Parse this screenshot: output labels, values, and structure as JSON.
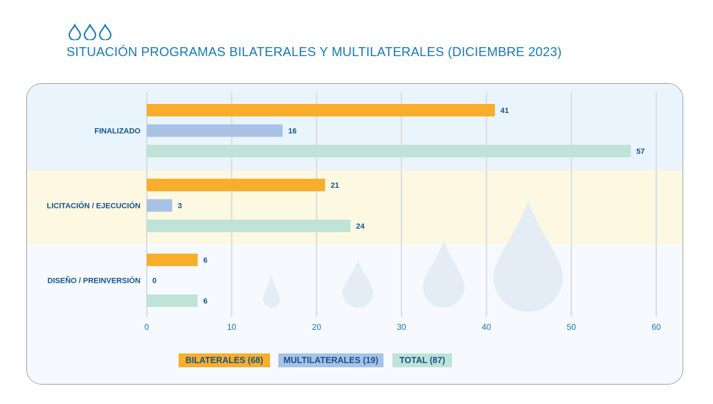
{
  "header": {
    "title": "SITUACIÓN PROGRAMAS BILATERALES Y MULTILATERALES (DICIEMBRE 2023)",
    "icon": "water-drops-icon"
  },
  "colors": {
    "bilaterales": "#f8ae2a",
    "multilaterales": "#a8c2e6",
    "total": "#bfe3d6",
    "text": "#14558f",
    "title": "#1479b8"
  },
  "chart_data": {
    "type": "bar",
    "orientation": "horizontal",
    "title": "SITUACIÓN PROGRAMAS BILATERALES Y MULTILATERALES (DICIEMBRE 2023)",
    "categories": [
      "FINALIZADO",
      "LICITACIÓN / EJECUCIÓN",
      "DISEÑO / PREINVERSIÓN"
    ],
    "series": [
      {
        "name": "BILATERALES (68)",
        "values": [
          41,
          21,
          6
        ]
      },
      {
        "name": "MULTILATERALES (19)",
        "values": [
          16,
          3,
          0
        ]
      },
      {
        "name": "TOTAL (87)",
        "values": [
          57,
          24,
          6
        ]
      }
    ],
    "xlim": [
      0,
      60
    ],
    "xticks": [
      0,
      10,
      20,
      30,
      40,
      50,
      60
    ],
    "xlabel": "",
    "ylabel": "",
    "grid": true,
    "data_labels": true,
    "legend_position": "bottom-center"
  },
  "legend": {
    "items": [
      "BILATERALES (68)",
      "MULTILATERALES (19)",
      "TOTAL (87)"
    ]
  }
}
